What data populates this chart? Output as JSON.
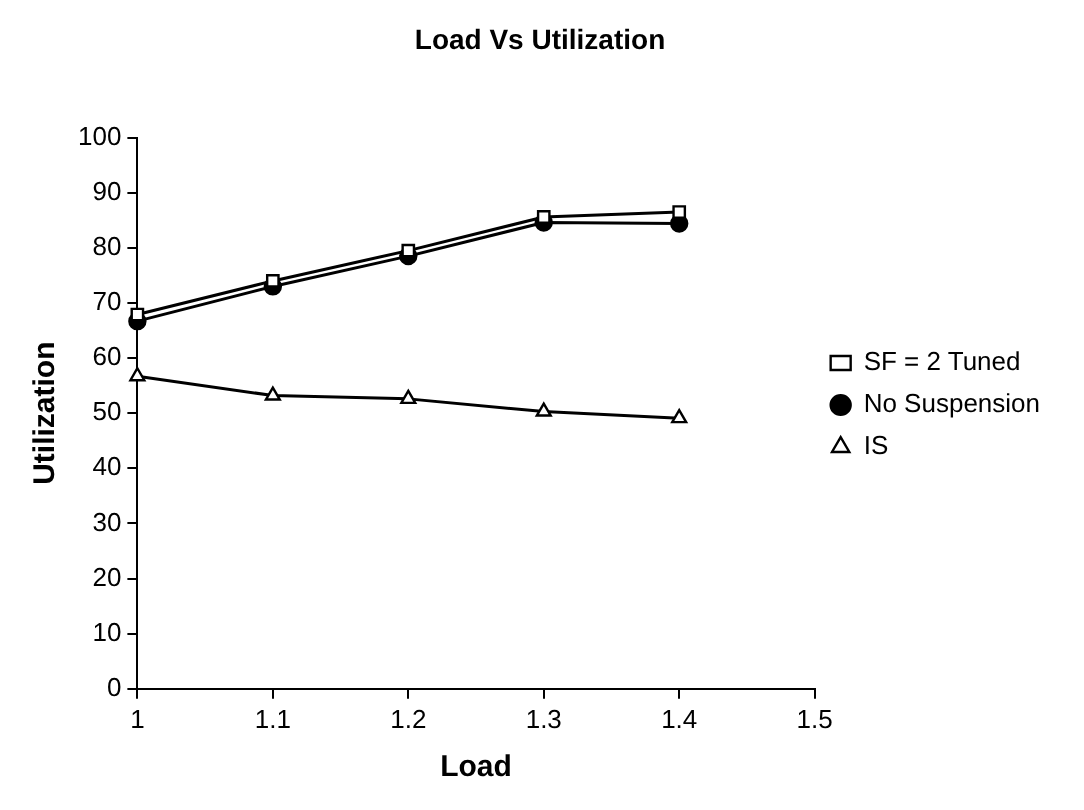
{
  "chart_data": {
    "type": "line",
    "title": "Load Vs Utilization",
    "xlabel": "Load",
    "ylabel": "Utilization",
    "x": [
      1,
      1.1,
      1.2,
      1.3,
      1.4
    ],
    "series": [
      {
        "name": "SF = 2 Tuned",
        "color": "#000000",
        "marker": "square",
        "values": [
          67.9,
          74,
          79.5,
          85.6,
          86.5
        ]
      },
      {
        "name": "No Suspension",
        "color": "#000000",
        "marker": "circle",
        "values": [
          66.7,
          73,
          78.5,
          84.6,
          84.4
        ]
      },
      {
        "name": "IS",
        "color": "#000000",
        "marker": "triangle",
        "values": [
          56.7,
          53.2,
          52.6,
          50.3,
          49.1
        ]
      }
    ],
    "xlim": [
      1,
      1.5
    ],
    "xticks": [
      1,
      1.1,
      1.2,
      1.3,
      1.4,
      1.5
    ],
    "ylim": [
      0,
      100
    ],
    "yticks": [
      0,
      10,
      20,
      30,
      40,
      50,
      60,
      70,
      80,
      90,
      100
    ],
    "grid": false,
    "legend": "right"
  }
}
